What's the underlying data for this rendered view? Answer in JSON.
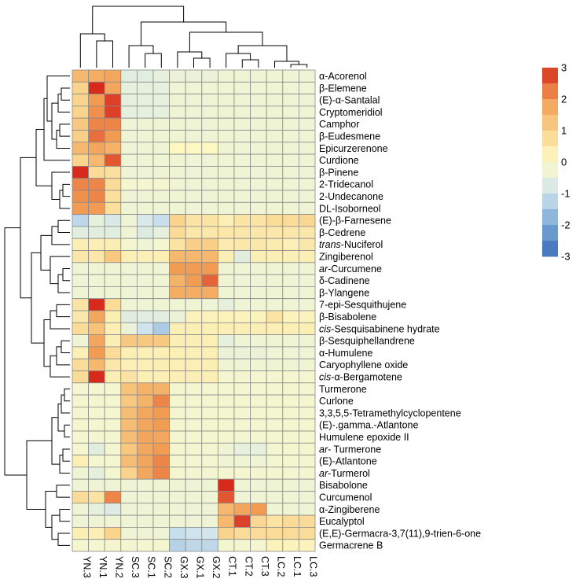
{
  "chart_data": {
    "type": "heatmap",
    "title": "",
    "columns": [
      "YN.3",
      "YN.1",
      "YN.2",
      "SC.3",
      "SC.1",
      "SC.2",
      "GX.3",
      "GX.1",
      "GX.2",
      "CT.1",
      "CT.2",
      "CT.3",
      "LC.2",
      "LC.1",
      "LC.3"
    ],
    "rows": [
      "α-Acorenol",
      "β-Elemene",
      "(E)-α-Santalal",
      "Cryptomeridiol",
      "Camphor",
      "β-Eudesmene",
      "Epicurzerenone",
      "Curdione",
      "β-Pinene",
      "2-Tridecanol",
      "2-Undecanone",
      "DL-Isoborneol",
      "(E)-β-Farnesene",
      "β-Cedrene",
      "trans-Nuciferol",
      "Zingiberenol",
      "ar-Curcumene",
      "δ-Cadinene",
      "β-Ylangene",
      "7-epi-Sesquithujene",
      "β-Bisabolene",
      "cis-Sesquisabinene hydrate",
      "β-Sesquiphellandrene",
      "α-Humulene",
      "Caryophyllene oxide",
      "cis-α-Bergamotene",
      "Turmerone",
      "Curlone",
      "3,3,5,5-Tetramethylcyclopentene",
      "(E)-.gamma.-Atlantone",
      "Humulene epoxide II",
      "ar- Turmerone",
      "(E)-Atlantone",
      "ar-Turmerol",
      "Bisabolone",
      "Curcumenol",
      "α-Zingiberene",
      "Eucalyptol",
      "(E,E)-Germacra-3,7(11),9-trien-6-one",
      "Germacrene B"
    ],
    "values": [
      [
        1.5,
        1.7,
        1.8,
        -0.6,
        -0.6,
        -0.5,
        -0.4,
        -0.4,
        -0.4,
        -0.3,
        -0.3,
        -0.3,
        -0.3,
        -0.3,
        -0.3
      ],
      [
        1,
        3,
        1.8,
        -0.5,
        -0.5,
        -0.5,
        -0.3,
        -0.3,
        -0.3,
        -0.3,
        -0.3,
        -0.3,
        -0.3,
        -0.3,
        -0.3
      ],
      [
        1,
        2,
        2.8,
        -0.5,
        -0.5,
        -0.5,
        -0.3,
        -0.3,
        -0.3,
        -0.3,
        -0.3,
        -0.3,
        -0.3,
        -0.3,
        -0.3
      ],
      [
        1,
        2.1,
        2.8,
        -0.5,
        -0.5,
        -0.5,
        -0.3,
        -0.3,
        -0.3,
        -0.3,
        -0.3,
        -0.3,
        -0.3,
        -0.3,
        -0.3
      ],
      [
        1.2,
        2.2,
        2.2,
        -0.3,
        -0.3,
        -0.3,
        -0.3,
        -0.3,
        -0.3,
        -0.3,
        -0.3,
        -0.3,
        -0.3,
        -0.3,
        -0.3
      ],
      [
        1.1,
        2.4,
        2.0,
        -0.3,
        -0.3,
        -0.3,
        -0.3,
        -0.3,
        -0.3,
        -0.3,
        -0.3,
        -0.3,
        -0.3,
        -0.3,
        -0.3
      ],
      [
        1.5,
        1.8,
        1.6,
        -0.3,
        -0.3,
        -0.3,
        0.1,
        0.1,
        0.1,
        -0.3,
        -0.3,
        -0.3,
        -0.3,
        -0.3,
        -0.3
      ],
      [
        1.0,
        1.5,
        2.6,
        -0.3,
        -0.3,
        -0.3,
        -0.3,
        -0.3,
        -0.3,
        -0.3,
        -0.3,
        -0.3,
        -0.3,
        -0.3,
        -0.3
      ],
      [
        3,
        0.8,
        0.7,
        -0.3,
        -0.3,
        -0.3,
        -0.3,
        -0.3,
        -0.3,
        -0.3,
        -0.3,
        -0.3,
        -0.3,
        -0.3,
        -0.3
      ],
      [
        2.2,
        2.2,
        0.8,
        -0.2,
        -0.2,
        -0.2,
        -0.3,
        -0.3,
        -0.3,
        -0.3,
        -0.3,
        -0.3,
        -0.3,
        -0.3,
        -0.3
      ],
      [
        2.1,
        2.2,
        0.7,
        -0.3,
        -0.3,
        -0.3,
        -0.3,
        -0.3,
        -0.3,
        -0.3,
        -0.3,
        -0.3,
        -0.3,
        -0.3,
        -0.3
      ],
      [
        2.0,
        2.0,
        0.7,
        -0.3,
        -0.3,
        -0.3,
        -0.3,
        -0.3,
        -0.3,
        -0.3,
        -0.3,
        -0.3,
        -0.3,
        -0.3,
        -0.3
      ],
      [
        -1.2,
        -0.5,
        -0.8,
        -0.3,
        -0.8,
        -1.1,
        1.0,
        0.6,
        0.6,
        0.3,
        0.6,
        0.6,
        0.8,
        0.8,
        0.9
      ],
      [
        -0.6,
        -0.6,
        -0.6,
        -0.3,
        -0.7,
        -0.5,
        0.8,
        0.5,
        0.5,
        0.5,
        0.5,
        0.5,
        0.5,
        0.5,
        0.5
      ],
      [
        0.3,
        0.3,
        0.3,
        -0.2,
        -0.3,
        -0.2,
        0.6,
        1.1,
        1.1,
        0.4,
        0.5,
        0.5,
        0.4,
        0.3,
        0.5
      ],
      [
        0.5,
        0.5,
        1.2,
        0.3,
        0.3,
        0.3,
        1.5,
        1.5,
        1.5,
        0.3,
        -0.6,
        0.3,
        0.3,
        0.3,
        0.3
      ],
      [
        -0.3,
        -0.3,
        -0.3,
        -0.3,
        -0.3,
        -0.3,
        2.0,
        2.0,
        2.0,
        -0.3,
        -0.3,
        -0.3,
        -0.3,
        -0.3,
        -0.3
      ],
      [
        -0.3,
        -0.3,
        -0.3,
        -0.3,
        -0.3,
        -0.3,
        1.6,
        2.0,
        2.5,
        -0.3,
        -0.3,
        -0.3,
        -0.3,
        -0.3,
        -0.3
      ],
      [
        -0.3,
        -0.3,
        -0.3,
        -0.3,
        -0.3,
        -0.3,
        1.7,
        1.7,
        1.7,
        -0.3,
        -0.3,
        -0.3,
        -0.3,
        -0.3,
        -0.3
      ],
      [
        0.6,
        3,
        0.8,
        -0.3,
        -0.3,
        -0.3,
        -0.3,
        -0.3,
        -0.3,
        -0.5,
        -0.3,
        -0.3,
        -0.3,
        -0.3,
        -0.3
      ],
      [
        0.5,
        1.8,
        0.3,
        -0.6,
        -0.6,
        -0.6,
        -0.4,
        0.2,
        0.2,
        0.2,
        0.2,
        0.2,
        0.6,
        0.2,
        0.2
      ],
      [
        0.8,
        1.3,
        0.3,
        -0.4,
        -1.0,
        -1.4,
        0.3,
        0.3,
        0.3,
        0.3,
        0.3,
        0.3,
        0.3,
        0.3,
        0.3
      ],
      [
        -0.3,
        1.8,
        0.3,
        1.2,
        1.2,
        1.2,
        0.3,
        0.3,
        0.3,
        -0.5,
        -0.3,
        -0.3,
        -0.3,
        -0.3,
        -0.3
      ],
      [
        0.3,
        2.0,
        0.8,
        0.3,
        0.3,
        0.3,
        0.3,
        0.3,
        0.3,
        -0.4,
        -0.4,
        -0.4,
        -0.3,
        -0.3,
        -0.3
      ],
      [
        0.8,
        1.5,
        0.5,
        0.3,
        0.3,
        0.3,
        0.3,
        0.3,
        0.3,
        -0.3,
        -0.3,
        -0.3,
        -0.3,
        -0.3,
        -0.3
      ],
      [
        0.8,
        3,
        0.3,
        0.6,
        0.3,
        0.3,
        0.3,
        0.3,
        0.3,
        -0.2,
        -0.2,
        -0.2,
        -0.2,
        -0.2,
        -0.2
      ],
      [
        -0.2,
        -0.2,
        -0.2,
        1.3,
        1.6,
        1.6,
        -0.2,
        -0.2,
        -0.2,
        -0.2,
        -0.2,
        -0.2,
        -0.2,
        -0.2,
        -0.2
      ],
      [
        -0.2,
        -0.2,
        -0.2,
        1.2,
        1.6,
        2.2,
        -0.2,
        -0.2,
        -0.2,
        -0.2,
        -0.2,
        -0.2,
        -0.2,
        -0.2,
        -0.2
      ],
      [
        -0.2,
        -0.2,
        -0.2,
        1.4,
        1.8,
        2.0,
        -0.2,
        -0.2,
        -0.2,
        -0.2,
        -0.2,
        -0.2,
        -0.2,
        -0.2,
        -0.2
      ],
      [
        -0.2,
        -0.2,
        -0.2,
        1.4,
        1.8,
        2.0,
        -0.2,
        -0.2,
        -0.2,
        -0.2,
        -0.2,
        -0.2,
        -0.2,
        -0.2,
        -0.2
      ],
      [
        -0.2,
        -0.2,
        -0.2,
        1.4,
        1.8,
        1.8,
        -0.2,
        -0.2,
        -0.2,
        -0.2,
        -0.2,
        -0.2,
        -0.2,
        -0.2,
        -0.2
      ],
      [
        -0.2,
        -0.6,
        -0.2,
        1.2,
        1.8,
        2.0,
        -0.2,
        -0.2,
        -0.2,
        -0.3,
        -0.5,
        -0.5,
        -0.2,
        -0.2,
        -0.2
      ],
      [
        0.3,
        -0.2,
        -0.2,
        1.4,
        1.8,
        2.2,
        -0.2,
        -0.2,
        -0.2,
        -0.3,
        -0.3,
        -0.3,
        -0.2,
        -0.2,
        -0.2
      ],
      [
        -0.3,
        -0.5,
        -0.2,
        1.0,
        1.8,
        2.2,
        -0.2,
        -0.2,
        -0.2,
        -0.2,
        -0.2,
        -0.2,
        -0.2,
        -0.2,
        -0.2
      ],
      [
        -0.3,
        -0.3,
        -0.3,
        -0.3,
        -0.3,
        -0.3,
        -0.3,
        -0.3,
        -0.3,
        3,
        -0.3,
        -0.3,
        -0.3,
        -0.3,
        -0.3
      ],
      [
        0.8,
        0.6,
        2.2,
        -0.3,
        -0.3,
        -0.3,
        -0.3,
        -0.3,
        -0.3,
        2.6,
        -0.3,
        -0.3,
        -0.3,
        -0.3,
        -0.3
      ],
      [
        -0.3,
        -0.5,
        -0.7,
        -0.3,
        -0.3,
        -0.3,
        -0.3,
        -0.3,
        -0.3,
        1.5,
        1.8,
        2.0,
        -0.3,
        -0.3,
        -0.3
      ],
      [
        -0.3,
        -0.3,
        -0.3,
        -0.3,
        -0.3,
        -0.3,
        -0.3,
        -0.3,
        -0.3,
        1.5,
        2.8,
        0.9,
        0.6,
        0.8,
        0.8
      ],
      [
        0.3,
        0.3,
        1.0,
        -0.3,
        -0.3,
        -0.3,
        -1.1,
        -1.0,
        -0.9,
        1.0,
        0.8,
        0.8,
        0.8,
        0.8,
        0.8
      ],
      [
        -0.2,
        -0.2,
        -0.2,
        -0.2,
        -0.2,
        -0.2,
        -1.3,
        -1.2,
        -1.2,
        -0.2,
        -0.2,
        -0.2,
        0.2,
        0.2,
        0.2
      ]
    ],
    "zlim": [
      -3,
      3
    ],
    "legend": {
      "ticks": [
        3,
        2,
        1,
        0,
        -1,
        -2,
        -3
      ],
      "position": "right"
    },
    "colors": {
      "low": "#3a6bb8",
      "mid": "#fdfbc8",
      "high": "#d8291d",
      "stops": [
        "#3a6bb8",
        "#7aa8d4",
        "#cfe4ef",
        "#fdfbc8",
        "#fad38c",
        "#f19c52",
        "#d8291d"
      ],
      "grid": "#8a8a8a",
      "dendrogram": "#000000"
    }
  }
}
